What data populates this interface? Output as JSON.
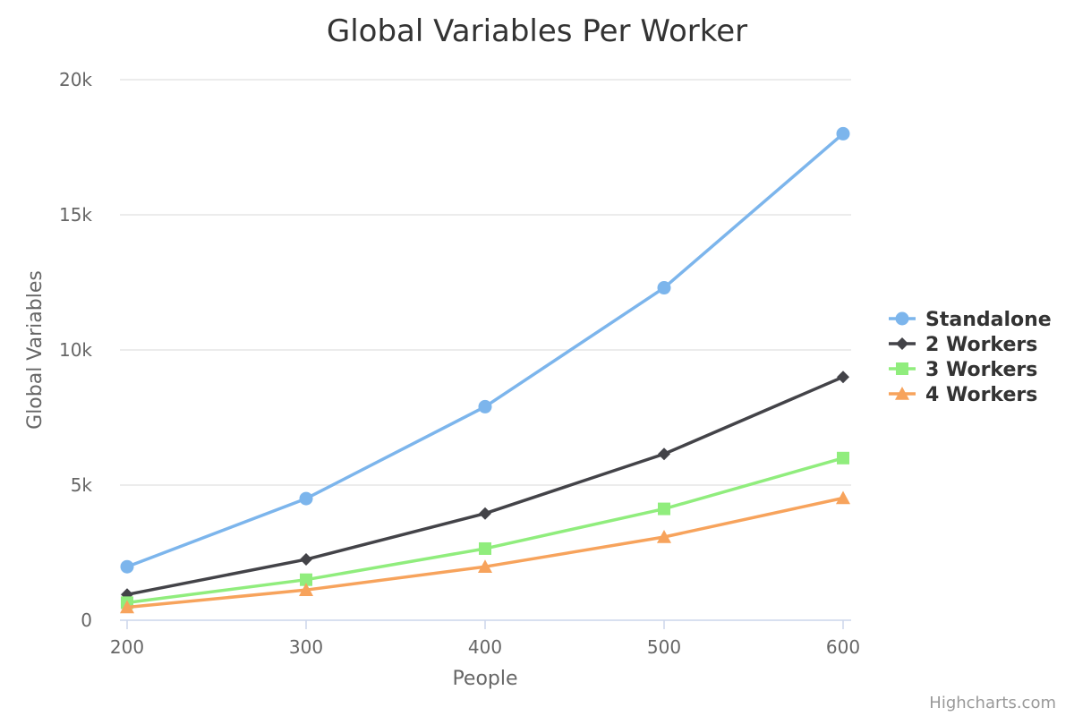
{
  "chart_data": {
    "type": "line",
    "title": "Global Variables Per Worker",
    "xlabel": "People",
    "ylabel": "Global Variables",
    "x": [
      200,
      300,
      400,
      500,
      600
    ],
    "xlim": [
      200,
      600
    ],
    "ylim": [
      0,
      20000
    ],
    "y_ticks": [
      0,
      5000,
      10000,
      15000,
      20000
    ],
    "y_tick_labels": [
      "0",
      "5k",
      "10k",
      "15k",
      "20k"
    ],
    "x_tick_labels": [
      "200",
      "300",
      "400",
      "500",
      "600"
    ],
    "grid": "horizontal",
    "legend_position": "right",
    "series": [
      {
        "name": "Standalone",
        "color": "#7cb5ec",
        "marker": "circle",
        "values": [
          1980,
          4500,
          7900,
          12300,
          18000
        ]
      },
      {
        "name": "2 Workers",
        "color": "#434348",
        "marker": "diamond",
        "values": [
          950,
          2250,
          3950,
          6150,
          9000
        ]
      },
      {
        "name": "3 Workers",
        "color": "#90ed7d",
        "marker": "square",
        "values": [
          650,
          1500,
          2650,
          4120,
          6000
        ]
      },
      {
        "name": "4 Workers",
        "color": "#f7a35c",
        "marker": "triangle",
        "values": [
          480,
          1120,
          1980,
          3080,
          4520
        ]
      }
    ]
  },
  "credits": "Highcharts.com"
}
